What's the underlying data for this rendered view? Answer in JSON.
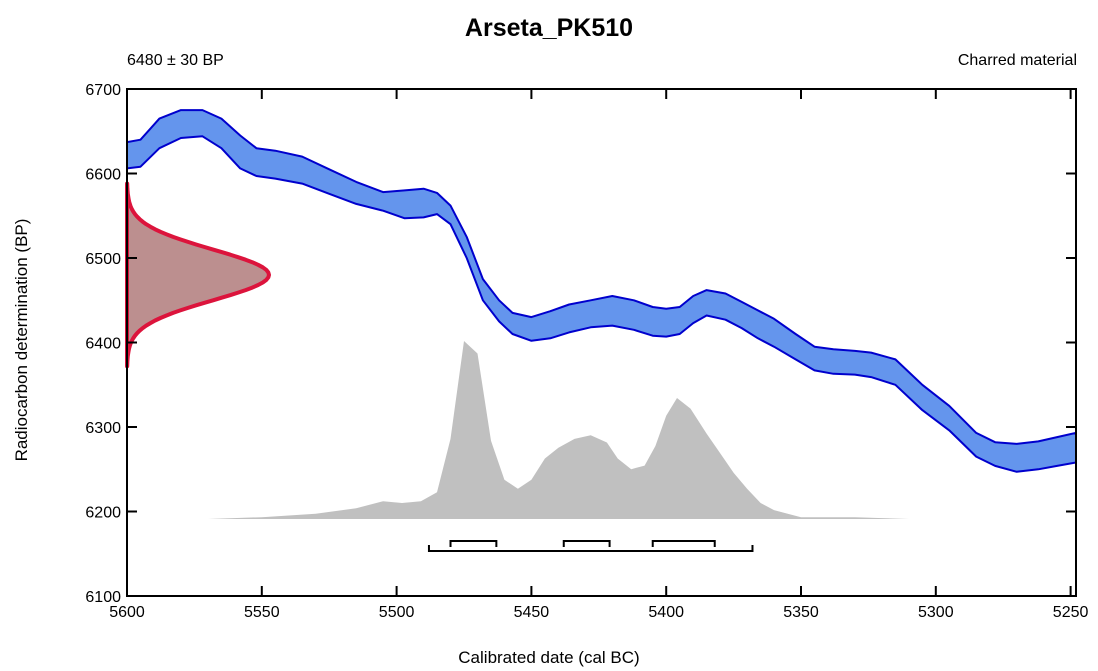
{
  "chart_data": {
    "type": "area",
    "title": "Arseta_PK510",
    "subtitle_left": "6480 ± 30 BP",
    "subtitle_right": "Charred material",
    "xlabel": "Calibrated date (cal BC)",
    "ylabel": "Radiocarbon determination (BP)",
    "xlim": [
      5600,
      5248
    ],
    "ylim": [
      6100,
      6700
    ],
    "x_ticks": [
      5600,
      5550,
      5500,
      5450,
      5400,
      5350,
      5300,
      5250
    ],
    "y_ticks": [
      6100,
      6200,
      6300,
      6400,
      6500,
      6600,
      6700
    ],
    "grid": false,
    "colors": {
      "curve": "#6495ED",
      "curve_edge": "#0000CD",
      "measurement": "#BC8F8F",
      "measurement_edge": "#DC143C",
      "calibrated": "#C0C0C0",
      "range": "#000000"
    },
    "measurement": {
      "mean": 6480,
      "sd": 30
    },
    "calibration_curve": {
      "x": [
        5600,
        5595,
        5588,
        5580,
        5572,
        5565,
        5558,
        5552,
        5545,
        5535,
        5525,
        5515,
        5505,
        5497,
        5490,
        5485,
        5480,
        5474,
        5468,
        5462,
        5457,
        5450,
        5443,
        5436,
        5428,
        5420,
        5412,
        5405,
        5400,
        5395,
        5390,
        5385,
        5378,
        5372,
        5366,
        5360,
        5352,
        5345,
        5338,
        5330,
        5324,
        5315,
        5305,
        5295,
        5285,
        5278,
        5270,
        5262,
        5255,
        5248
      ],
      "upper": [
        6637,
        6640,
        6665,
        6675,
        6675,
        6665,
        6645,
        6630,
        6627,
        6620,
        6605,
        6590,
        6578,
        6580,
        6582,
        6577,
        6562,
        6525,
        6475,
        6450,
        6435,
        6430,
        6437,
        6445,
        6450,
        6455,
        6450,
        6442,
        6440,
        6442,
        6455,
        6462,
        6458,
        6448,
        6438,
        6428,
        6410,
        6395,
        6392,
        6390,
        6388,
        6380,
        6350,
        6325,
        6293,
        6282,
        6280,
        6283,
        6288,
        6293
      ],
      "lower": [
        6606,
        6608,
        6630,
        6642,
        6644,
        6630,
        6606,
        6597,
        6594,
        6588,
        6576,
        6564,
        6556,
        6547,
        6548,
        6552,
        6540,
        6500,
        6450,
        6425,
        6410,
        6402,
        6405,
        6412,
        6418,
        6420,
        6415,
        6408,
        6407,
        6410,
        6423,
        6432,
        6427,
        6417,
        6405,
        6395,
        6380,
        6367,
        6363,
        6362,
        6359,
        6350,
        6320,
        6296,
        6265,
        6254,
        6247,
        6250,
        6254,
        6258
      ]
    },
    "posterior": {
      "x": [
        5588,
        5570,
        5550,
        5530,
        5515,
        5505,
        5498,
        5491,
        5485,
        5480,
        5475,
        5470,
        5465,
        5460,
        5455,
        5450,
        5445,
        5440,
        5434,
        5428,
        5422,
        5418,
        5413,
        5408,
        5404,
        5400,
        5396,
        5391,
        5385,
        5380,
        5375,
        5370,
        5365,
        5360,
        5350,
        5330,
        5310,
        5300
      ],
      "density": [
        0.0,
        0.0,
        0.01,
        0.03,
        0.06,
        0.1,
        0.09,
        0.1,
        0.15,
        0.45,
        1.0,
        0.93,
        0.44,
        0.22,
        0.17,
        0.22,
        0.34,
        0.4,
        0.45,
        0.47,
        0.43,
        0.34,
        0.28,
        0.3,
        0.41,
        0.58,
        0.68,
        0.62,
        0.48,
        0.37,
        0.26,
        0.17,
        0.09,
        0.05,
        0.01,
        0.01,
        0.0,
        0.0
      ]
    },
    "ranges_68": [
      [
        5480,
        5463
      ],
      [
        5438,
        5421
      ],
      [
        5405,
        5382
      ]
    ],
    "ranges_95": [
      [
        5488,
        5368
      ]
    ]
  }
}
